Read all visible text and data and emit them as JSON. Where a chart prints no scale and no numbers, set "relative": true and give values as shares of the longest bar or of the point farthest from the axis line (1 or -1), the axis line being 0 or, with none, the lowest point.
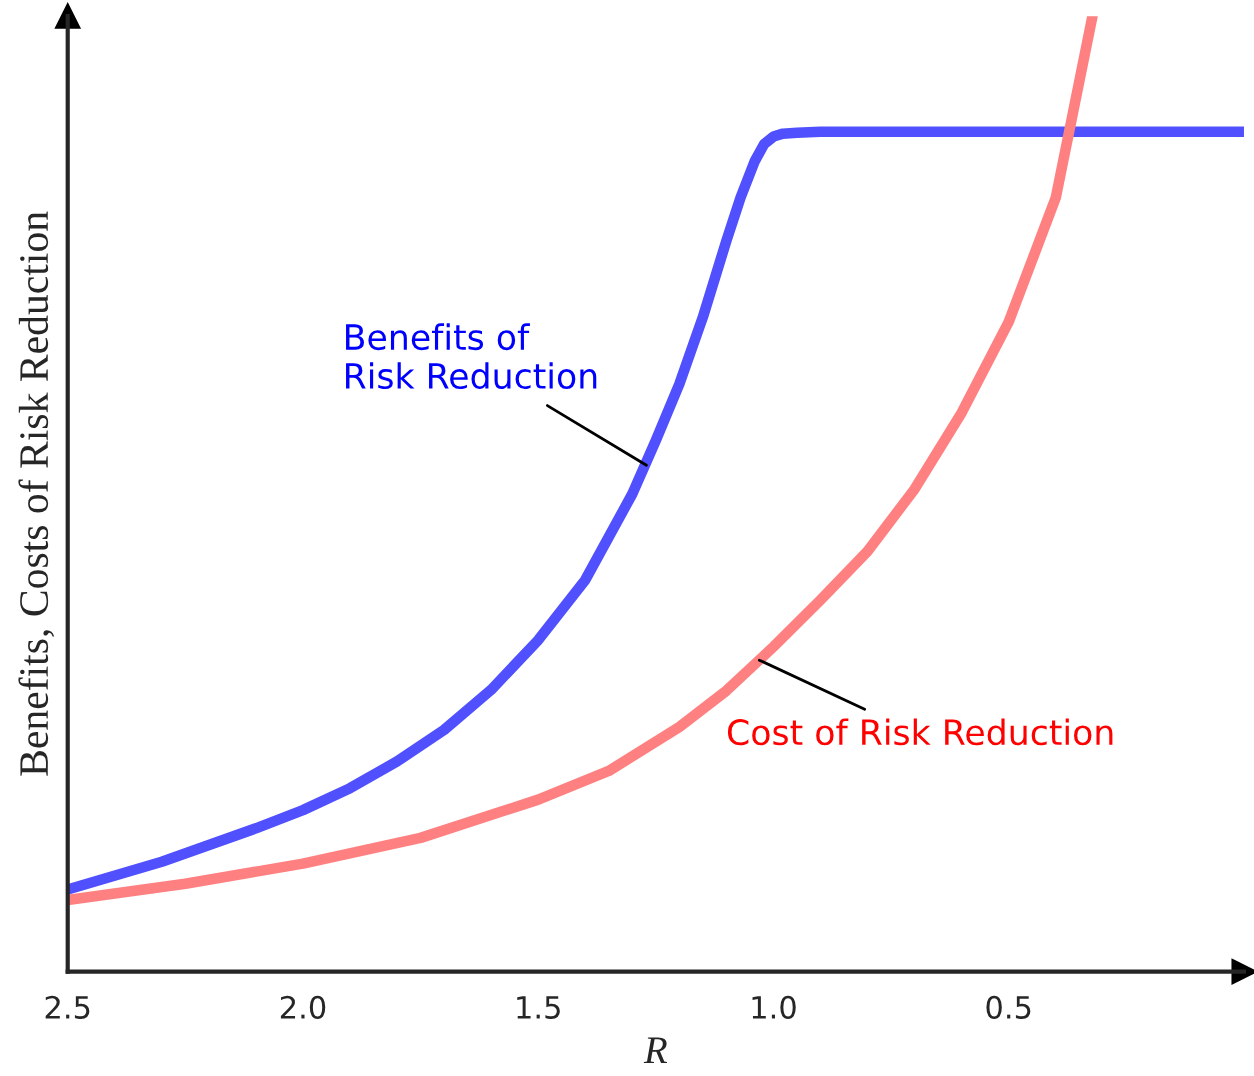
{
  "chart_data": {
    "type": "line",
    "relative": true,
    "xlabel": "R",
    "ylabel": "Benefits, Costs of Risk Reduction",
    "xlim": [
      2.5,
      0.0
    ],
    "xticks": [
      2.5,
      {
        "value": 2,
        "label": "2.0"
      },
      1.5,
      {
        "value": 1,
        "label": "1.0"
      },
      0.5
    ],
    "tick_labels": "x",
    "grid": false,
    "series": [
      {
        "color": "#5050ff",
        "x": [
          2.5,
          2.3,
          2.1,
          2.0,
          1.9,
          1.8,
          1.7,
          1.6,
          1.5,
          1.4,
          1.3,
          1.25,
          1.2,
          1.15,
          1.1,
          1.07,
          1.04,
          1.02,
          1.0,
          0.98,
          0.95,
          0.9,
          0.0
        ],
        "values": [
          0.086,
          0.115,
          0.15,
          0.169,
          0.192,
          0.22,
          0.253,
          0.295,
          0.347,
          0.41,
          0.5,
          0.556,
          0.615,
          0.685,
          0.765,
          0.81,
          0.848,
          0.866,
          0.874,
          0.877,
          0.878,
          0.879,
          0.879
        ]
      },
      {
        "color": "#ff8080",
        "x": [
          2.5,
          2.25,
          2.0,
          1.75,
          1.5,
          1.35,
          1.2,
          1.1,
          1.0,
          0.9,
          0.8,
          0.7,
          0.6,
          0.5,
          0.4,
          0.322
        ],
        "values": [
          0.075,
          0.092,
          0.113,
          0.14,
          0.18,
          0.21,
          0.256,
          0.294,
          0.34,
          0.389,
          0.44,
          0.505,
          0.585,
          0.68,
          0.81,
          1.0
        ]
      }
    ],
    "annotations": [
      {
        "text": "Benefits of\nRisk Reduction",
        "x": 1.27,
        "y": 0.53
      },
      {
        "text": "Cost of Risk Reduction",
        "x": 1.03,
        "y": 0.326
      }
    ]
  }
}
